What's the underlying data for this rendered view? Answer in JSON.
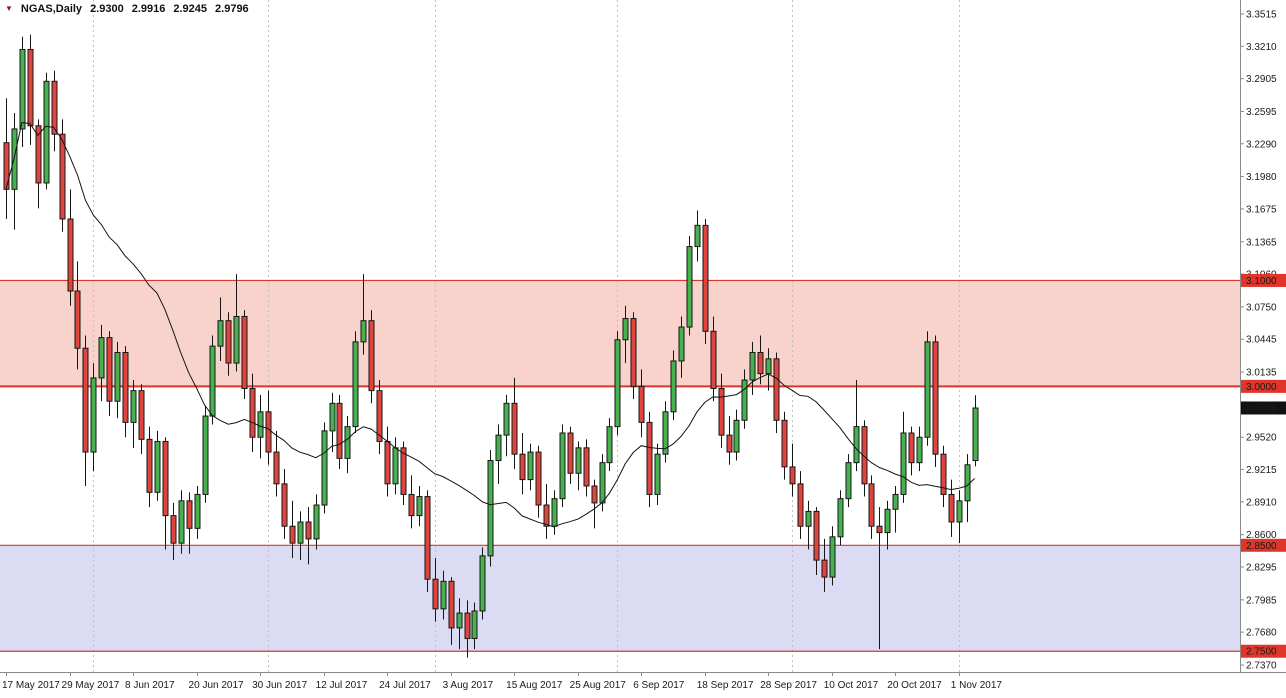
{
  "header": {
    "symbol_timeframe": "NGAS,Daily",
    "open": "2.9300",
    "high": "2.9916",
    "low": "2.9245",
    "close": "2.9796"
  },
  "icons": {
    "dropdown": "▼"
  },
  "colors": {
    "background": "#ffffff",
    "bull": "#47b04f",
    "bear": "#df453e",
    "outline": "#161616",
    "ma": "#141414",
    "grid": "#c0c0c0",
    "axis_line": "#8a8a8a",
    "axis_text": "#1a1a1a",
    "badge_text": "#ffffff",
    "level_red": "#d9372c"
  },
  "chart_data": {
    "type": "candlestick",
    "symbol": "NGAS",
    "timeframe": "Daily",
    "axis": {
      "price_min": 2.737,
      "price_max": 3.3515
    },
    "y_ticks": [
      "3.3515",
      "3.3210",
      "3.2905",
      "3.2595",
      "3.2290",
      "3.1980",
      "3.1675",
      "3.1365",
      "3.1060",
      "3.0750",
      "3.0445",
      "3.0135",
      "2.9520",
      "2.9215",
      "2.8910",
      "2.8600",
      "2.8295",
      "2.7985",
      "2.7680",
      "2.7370"
    ],
    "x_labels": [
      {
        "index": 0,
        "label": "17 May 2017"
      },
      {
        "index": 8,
        "label": "29 May 2017"
      },
      {
        "index": 16,
        "label": "8 Jun 2017"
      },
      {
        "index": 24,
        "label": "20 Jun 2017"
      },
      {
        "index": 32,
        "label": "30 Jun 2017"
      },
      {
        "index": 40,
        "label": "12 Jul 2017"
      },
      {
        "index": 48,
        "label": "24 Jul 2017"
      },
      {
        "index": 56,
        "label": "3 Aug 2017"
      },
      {
        "index": 64,
        "label": "15 Aug 2017"
      },
      {
        "index": 72,
        "label": "25 Aug 2017"
      },
      {
        "index": 80,
        "label": "6 Sep 2017"
      },
      {
        "index": 88,
        "label": "18 Sep 2017"
      },
      {
        "index": 96,
        "label": "28 Sep 2017"
      },
      {
        "index": 104,
        "label": "10 Oct 2017"
      },
      {
        "index": 112,
        "label": "20 Oct 2017"
      },
      {
        "index": 120,
        "label": "1 Nov 2017"
      }
    ],
    "grid_indices": [
      11,
      33,
      54,
      77,
      99,
      120
    ],
    "zones": [
      {
        "name": "resistance-zone",
        "top": 3.1,
        "bottom": 3.0,
        "fill": "#f8d3cc"
      },
      {
        "name": "support-zone",
        "top": 2.85,
        "bottom": 2.75,
        "fill": "#dbdcf4"
      }
    ],
    "price_lines": [
      {
        "price": 3.1,
        "width": 1.2
      },
      {
        "price": 3.0,
        "width": 2
      },
      {
        "price": 2.85,
        "width": 1.2
      },
      {
        "price": 2.75,
        "width": 1.2
      }
    ],
    "axis_badges": [
      {
        "label": "3.1000",
        "price": 3.1,
        "bg": "#e0352a"
      },
      {
        "label": "3.0000",
        "price": 3.0,
        "bg": "#e0352a"
      },
      {
        "label": "2.9796",
        "price": 2.9796,
        "bg": "#111111"
      },
      {
        "label": "2.8500",
        "price": 2.85,
        "bg": "#e0352a"
      },
      {
        "label": "2.7500",
        "price": 2.75,
        "bg": "#e0352a"
      }
    ],
    "current_price": 2.9796,
    "ma_period": 20,
    "dates": [
      "2017.05.17",
      "2017.05.18",
      "2017.05.19",
      "2017.05.22",
      "2017.05.23",
      "2017.05.24",
      "2017.05.25",
      "2017.05.26",
      "2017.05.29",
      "2017.05.30",
      "2017.05.31",
      "2017.06.01",
      "2017.06.02",
      "2017.06.05",
      "2017.06.06",
      "2017.06.07",
      "2017.06.08",
      "2017.06.09",
      "2017.06.12",
      "2017.06.13",
      "2017.06.14",
      "2017.06.15",
      "2017.06.16",
      "2017.06.19",
      "2017.06.20",
      "2017.06.21",
      "2017.06.22",
      "2017.06.23",
      "2017.06.26",
      "2017.06.27",
      "2017.06.28",
      "2017.06.29",
      "2017.06.30",
      "2017.07.03",
      "2017.07.04",
      "2017.07.05",
      "2017.07.06",
      "2017.07.07",
      "2017.07.10",
      "2017.07.11",
      "2017.07.12",
      "2017.07.13",
      "2017.07.14",
      "2017.07.17",
      "2017.07.18",
      "2017.07.19",
      "2017.07.20",
      "2017.07.21",
      "2017.07.24",
      "2017.07.25",
      "2017.07.26",
      "2017.07.27",
      "2017.07.28",
      "2017.07.31",
      "2017.08.01",
      "2017.08.02",
      "2017.08.03",
      "2017.08.04",
      "2017.08.07",
      "2017.08.08",
      "2017.08.09",
      "2017.08.10",
      "2017.08.11",
      "2017.08.14",
      "2017.08.15",
      "2017.08.16",
      "2017.08.17",
      "2017.08.18",
      "2017.08.21",
      "2017.08.22",
      "2017.08.23",
      "2017.08.24",
      "2017.08.25",
      "2017.08.28",
      "2017.08.29",
      "2017.08.30",
      "2017.08.31",
      "2017.09.01",
      "2017.09.04",
      "2017.09.05",
      "2017.09.06",
      "2017.09.07",
      "2017.09.08",
      "2017.09.11",
      "2017.09.12",
      "2017.09.13",
      "2017.09.14",
      "2017.09.15",
      "2017.09.18",
      "2017.09.19",
      "2017.09.20",
      "2017.09.21",
      "2017.09.22",
      "2017.09.25",
      "2017.09.26",
      "2017.09.27",
      "2017.09.28",
      "2017.09.29",
      "2017.10.02",
      "2017.10.03",
      "2017.10.04",
      "2017.10.05",
      "2017.10.06",
      "2017.10.09",
      "2017.10.10",
      "2017.10.11",
      "2017.10.12",
      "2017.10.13",
      "2017.10.16",
      "2017.10.17",
      "2017.10.18",
      "2017.10.19",
      "2017.10.20",
      "2017.10.23",
      "2017.10.24",
      "2017.10.25",
      "2017.10.26",
      "2017.10.27",
      "2017.10.30",
      "2017.10.31",
      "2017.11.01",
      "2017.11.02",
      "2017.11.03"
    ],
    "candles": [
      [
        3.23,
        3.272,
        3.158,
        3.186
      ],
      [
        3.186,
        3.258,
        3.148,
        3.243
      ],
      [
        3.243,
        3.33,
        3.226,
        3.318
      ],
      [
        3.318,
        3.332,
        3.228,
        3.246
      ],
      [
        3.246,
        3.252,
        3.168,
        3.192
      ],
      [
        3.192,
        3.296,
        3.186,
        3.288
      ],
      [
        3.288,
        3.298,
        3.222,
        3.238
      ],
      [
        3.238,
        3.252,
        3.146,
        3.158
      ],
      [
        3.158,
        3.186,
        3.076,
        3.09
      ],
      [
        3.09,
        3.118,
        3.016,
        3.036
      ],
      [
        3.036,
        3.048,
        2.906,
        2.938
      ],
      [
        2.938,
        3.022,
        2.92,
        3.008
      ],
      [
        3.008,
        3.058,
        2.986,
        3.046
      ],
      [
        3.046,
        3.052,
        2.972,
        2.986
      ],
      [
        2.986,
        3.042,
        2.97,
        3.032
      ],
      [
        3.032,
        3.038,
        2.952,
        2.966
      ],
      [
        2.966,
        3.006,
        2.942,
        2.996
      ],
      [
        2.996,
        3.002,
        2.936,
        2.95
      ],
      [
        2.95,
        2.962,
        2.886,
        2.9
      ],
      [
        2.9,
        2.958,
        2.892,
        2.948
      ],
      [
        2.948,
        2.952,
        2.846,
        2.878
      ],
      [
        2.878,
        2.89,
        2.836,
        2.852
      ],
      [
        2.852,
        2.902,
        2.842,
        2.892
      ],
      [
        2.892,
        2.9,
        2.842,
        2.866
      ],
      [
        2.866,
        2.906,
        2.856,
        2.898
      ],
      [
        2.898,
        2.982,
        2.89,
        2.972
      ],
      [
        2.972,
        3.048,
        2.964,
        3.038
      ],
      [
        3.038,
        3.084,
        3.024,
        3.062
      ],
      [
        3.062,
        3.07,
        3.01,
        3.022
      ],
      [
        3.022,
        3.106,
        3.014,
        3.066
      ],
      [
        3.066,
        3.072,
        2.988,
        2.998
      ],
      [
        2.998,
        3.012,
        2.938,
        2.952
      ],
      [
        2.952,
        2.992,
        2.932,
        2.976
      ],
      [
        2.976,
        2.996,
        2.926,
        2.938
      ],
      [
        2.938,
        2.958,
        2.896,
        2.908
      ],
      [
        2.908,
        2.922,
        2.856,
        2.868
      ],
      [
        2.868,
        2.892,
        2.838,
        2.852
      ],
      [
        2.852,
        2.882,
        2.836,
        2.872
      ],
      [
        2.872,
        2.886,
        2.832,
        2.856
      ],
      [
        2.856,
        2.898,
        2.846,
        2.888
      ],
      [
        2.888,
        2.966,
        2.88,
        2.958
      ],
      [
        2.958,
        2.994,
        2.938,
        2.984
      ],
      [
        2.984,
        2.992,
        2.922,
        2.932
      ],
      [
        2.932,
        2.972,
        2.918,
        2.962
      ],
      [
        2.962,
        3.052,
        2.956,
        3.042
      ],
      [
        3.042,
        3.106,
        3.03,
        3.062
      ],
      [
        3.062,
        3.072,
        2.984,
        2.996
      ],
      [
        2.996,
        3.006,
        2.936,
        2.948
      ],
      [
        2.948,
        2.962,
        2.896,
        2.908
      ],
      [
        2.908,
        2.952,
        2.898,
        2.942
      ],
      [
        2.942,
        2.948,
        2.888,
        2.898
      ],
      [
        2.898,
        2.916,
        2.866,
        2.878
      ],
      [
        2.878,
        2.906,
        2.868,
        2.896
      ],
      [
        2.896,
        2.902,
        2.806,
        2.818
      ],
      [
        2.818,
        2.838,
        2.778,
        2.79
      ],
      [
        2.79,
        2.826,
        2.78,
        2.816
      ],
      [
        2.816,
        2.82,
        2.756,
        2.772
      ],
      [
        2.772,
        2.8,
        2.752,
        2.786
      ],
      [
        2.786,
        2.798,
        2.744,
        2.762
      ],
      [
        2.762,
        2.796,
        2.752,
        2.788
      ],
      [
        2.788,
        2.848,
        2.78,
        2.84
      ],
      [
        2.84,
        2.94,
        2.83,
        2.93
      ],
      [
        2.93,
        2.964,
        2.908,
        2.954
      ],
      [
        2.954,
        2.992,
        2.934,
        2.984
      ],
      [
        2.984,
        3.008,
        2.922,
        2.936
      ],
      [
        2.936,
        2.956,
        2.898,
        2.912
      ],
      [
        2.912,
        2.946,
        2.902,
        2.938
      ],
      [
        2.938,
        2.944,
        2.876,
        2.888
      ],
      [
        2.888,
        2.908,
        2.856,
        2.868
      ],
      [
        2.868,
        2.902,
        2.86,
        2.894
      ],
      [
        2.894,
        2.964,
        2.886,
        2.956
      ],
      [
        2.956,
        2.962,
        2.908,
        2.918
      ],
      [
        2.918,
        2.948,
        2.902,
        2.942
      ],
      [
        2.942,
        2.95,
        2.896,
        2.906
      ],
      [
        2.906,
        2.912,
        2.866,
        2.89
      ],
      [
        2.89,
        2.936,
        2.882,
        2.928
      ],
      [
        2.928,
        2.97,
        2.92,
        2.962
      ],
      [
        2.962,
        3.052,
        2.954,
        3.044
      ],
      [
        3.044,
        3.076,
        3.022,
        3.064
      ],
      [
        3.064,
        3.07,
        2.988,
        3.0
      ],
      [
        3.0,
        3.016,
        2.952,
        2.966
      ],
      [
        2.966,
        2.976,
        2.886,
        2.898
      ],
      [
        2.898,
        2.946,
        2.888,
        2.936
      ],
      [
        2.936,
        2.986,
        2.928,
        2.976
      ],
      [
        2.976,
        3.034,
        2.968,
        3.024
      ],
      [
        3.024,
        3.066,
        3.008,
        3.056
      ],
      [
        3.056,
        3.142,
        3.048,
        3.132
      ],
      [
        3.132,
        3.166,
        3.118,
        3.152
      ],
      [
        3.152,
        3.158,
        3.04,
        3.052
      ],
      [
        3.052,
        3.066,
        2.986,
        2.998
      ],
      [
        2.998,
        3.012,
        2.942,
        2.954
      ],
      [
        2.954,
        2.972,
        2.926,
        2.938
      ],
      [
        2.938,
        2.978,
        2.93,
        2.968
      ],
      [
        2.968,
        3.016,
        2.96,
        3.006
      ],
      [
        3.006,
        3.042,
        2.992,
        3.032
      ],
      [
        3.032,
        3.048,
        3.002,
        3.012
      ],
      [
        3.012,
        3.036,
        2.996,
        3.026
      ],
      [
        3.026,
        3.032,
        2.956,
        2.968
      ],
      [
        2.968,
        2.976,
        2.912,
        2.924
      ],
      [
        2.924,
        2.946,
        2.896,
        2.908
      ],
      [
        2.908,
        2.92,
        2.856,
        2.868
      ],
      [
        2.868,
        2.892,
        2.846,
        2.882
      ],
      [
        2.882,
        2.886,
        2.822,
        2.836
      ],
      [
        2.836,
        2.856,
        2.806,
        2.82
      ],
      [
        2.82,
        2.868,
        2.812,
        2.858
      ],
      [
        2.858,
        2.902,
        2.85,
        2.894
      ],
      [
        2.894,
        2.936,
        2.886,
        2.928
      ],
      [
        2.928,
        3.006,
        2.92,
        2.962
      ],
      [
        2.962,
        2.968,
        2.896,
        2.908
      ],
      [
        2.908,
        2.916,
        2.856,
        2.868
      ],
      [
        2.868,
        2.886,
        2.752,
        2.862
      ],
      [
        2.862,
        2.892,
        2.846,
        2.884
      ],
      [
        2.884,
        2.906,
        2.862,
        2.898
      ],
      [
        2.898,
        2.976,
        2.89,
        2.956
      ],
      [
        2.956,
        2.962,
        2.916,
        2.928
      ],
      [
        2.928,
        2.962,
        2.92,
        2.952
      ],
      [
        2.952,
        3.052,
        2.944,
        3.042
      ],
      [
        3.042,
        3.048,
        2.924,
        2.936
      ],
      [
        2.936,
        2.944,
        2.886,
        2.898
      ],
      [
        2.898,
        2.912,
        2.858,
        2.872
      ],
      [
        2.872,
        2.902,
        2.852,
        2.892
      ],
      [
        2.892,
        2.936,
        2.872,
        2.926
      ],
      [
        2.93,
        2.9916,
        2.9245,
        2.9796
      ]
    ]
  }
}
